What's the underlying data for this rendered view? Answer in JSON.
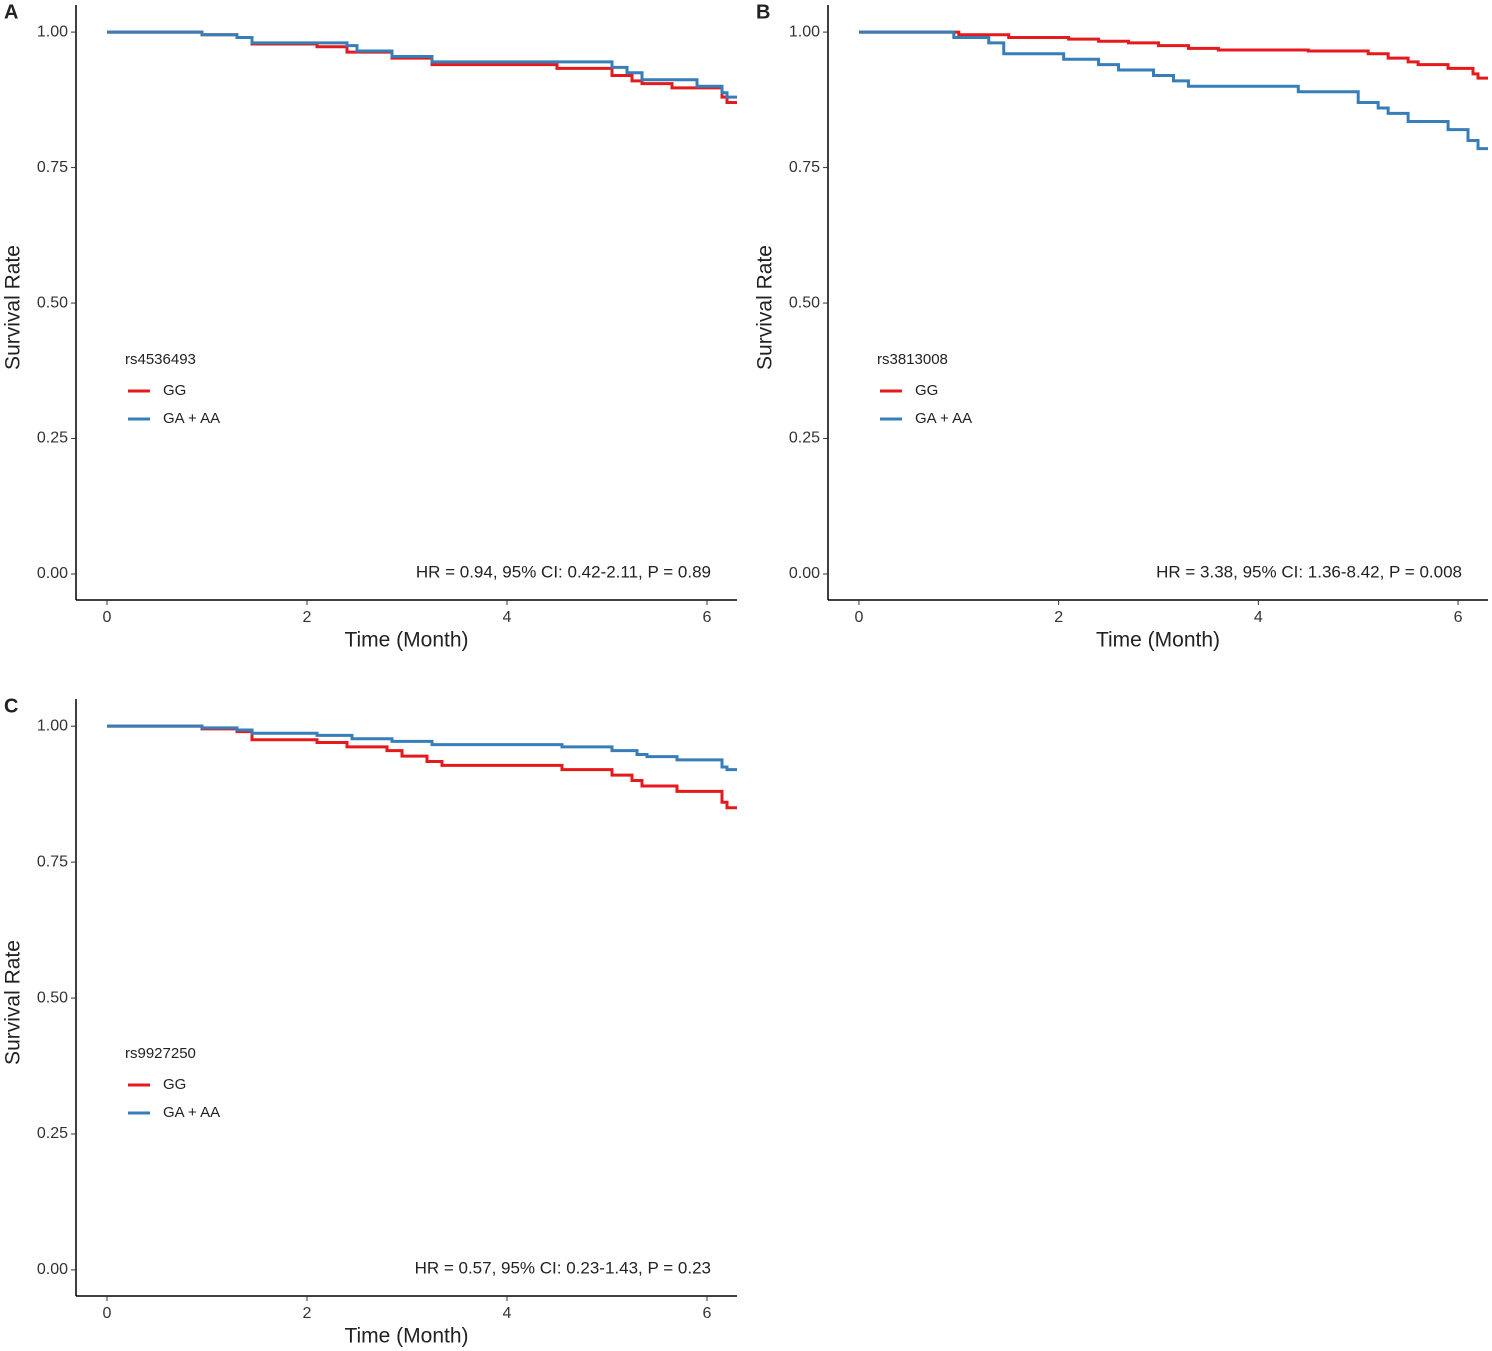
{
  "chart_data": [
    {
      "type": "step",
      "panel_label": "A",
      "x_label": "Time (Month)",
      "y_label": "Survival Rate",
      "legend_title": "rs4536493",
      "annotation": "HR = 0.94, 95% CI: 0.42-2.11, P =  0.89",
      "xlim": [
        -0.31,
        6.3
      ],
      "ylim": [
        -0.048,
        1.05
      ],
      "xticks": [
        0,
        2,
        4,
        6
      ],
      "yticks": [
        {
          "value": 0,
          "label": "0.00"
        },
        {
          "value": 0.25,
          "label": "0.25"
        },
        {
          "value": 0.5,
          "label": "0.50"
        },
        {
          "value": 0.75,
          "label": "0.75"
        },
        {
          "value": 1,
          "label": "1.00"
        }
      ],
      "series": [
        {
          "name": "GG",
          "color": "#e41a1c",
          "x": [
            0,
            0.95,
            1.3,
            1.45,
            2.1,
            2.4,
            2.85,
            3.25,
            4.5,
            5.05,
            5.25,
            5.35,
            5.65,
            6.15,
            6.2,
            6.3
          ],
          "values": [
            1,
            0.995,
            0.99,
            0.978,
            0.973,
            0.963,
            0.952,
            0.94,
            0.933,
            0.92,
            0.91,
            0.905,
            0.897,
            0.88,
            0.87,
            0.87
          ]
        },
        {
          "name": "GA + AA",
          "color": "#377eb8",
          "x": [
            0,
            0.95,
            1.3,
            1.45,
            2.4,
            2.5,
            2.85,
            3.25,
            5.05,
            5.2,
            5.35,
            5.9,
            6.15,
            6.2,
            6.3
          ],
          "values": [
            1,
            0.995,
            0.99,
            0.98,
            0.975,
            0.965,
            0.955,
            0.945,
            0.935,
            0.925,
            0.912,
            0.9,
            0.888,
            0.88,
            0.88
          ]
        }
      ]
    },
    {
      "type": "step",
      "panel_label": "B",
      "x_label": "Time (Month)",
      "y_label": "Survival Rate",
      "legend_title": "rs3813008",
      "annotation": "HR = 3.38, 95% CI: 1.36-8.42, P = 0.008",
      "xlim": [
        -0.31,
        6.3
      ],
      "ylim": [
        -0.048,
        1.05
      ],
      "xticks": [
        0,
        2,
        4,
        6
      ],
      "yticks": [
        {
          "value": 0,
          "label": "0.00"
        },
        {
          "value": 0.25,
          "label": "0.25"
        },
        {
          "value": 0.5,
          "label": "0.50"
        },
        {
          "value": 0.75,
          "label": "0.75"
        },
        {
          "value": 1,
          "label": "1.00"
        }
      ],
      "series": [
        {
          "name": "GG",
          "color": "#e41a1c",
          "x": [
            0,
            1.0,
            1.5,
            2.1,
            2.4,
            2.7,
            3.0,
            3.3,
            3.6,
            4.5,
            5.1,
            5.3,
            5.5,
            5.6,
            5.9,
            6.15,
            6.2,
            6.3
          ],
          "values": [
            1,
            0.995,
            0.99,
            0.987,
            0.983,
            0.98,
            0.975,
            0.97,
            0.967,
            0.965,
            0.96,
            0.952,
            0.945,
            0.94,
            0.933,
            0.923,
            0.915,
            0.915
          ]
        },
        {
          "name": "GA + AA",
          "color": "#377eb8",
          "x": [
            0,
            0.95,
            1.3,
            1.45,
            2.05,
            2.4,
            2.6,
            2.95,
            3.15,
            3.3,
            4.4,
            5.0,
            5.2,
            5.3,
            5.5,
            5.9,
            6.1,
            6.2,
            6.3
          ],
          "values": [
            1,
            0.99,
            0.98,
            0.96,
            0.95,
            0.94,
            0.93,
            0.92,
            0.91,
            0.9,
            0.89,
            0.87,
            0.86,
            0.85,
            0.835,
            0.82,
            0.8,
            0.785,
            0.785
          ]
        }
      ]
    },
    {
      "type": "step",
      "panel_label": "C",
      "x_label": "Time (Month)",
      "y_label": "Survival Rate",
      "legend_title": "rs9927250",
      "annotation": "HR = 0.57, 95% CI: 0.23-1.43, P = 0.23",
      "xlim": [
        -0.31,
        6.3
      ],
      "ylim": [
        -0.048,
        1.05
      ],
      "xticks": [
        0,
        2,
        4,
        6
      ],
      "yticks": [
        {
          "value": 0,
          "label": "0.00"
        },
        {
          "value": 0.25,
          "label": "0.25"
        },
        {
          "value": 0.5,
          "label": "0.50"
        },
        {
          "value": 0.75,
          "label": "0.75"
        },
        {
          "value": 1,
          "label": "1.00"
        }
      ],
      "series": [
        {
          "name": "GG",
          "color": "#e41a1c",
          "x": [
            0,
            0.95,
            1.3,
            1.45,
            2.1,
            2.4,
            2.8,
            2.95,
            3.2,
            3.35,
            4.55,
            5.05,
            5.25,
            5.35,
            5.7,
            6.15,
            6.2,
            6.3
          ],
          "values": [
            1,
            0.995,
            0.99,
            0.975,
            0.97,
            0.962,
            0.955,
            0.945,
            0.935,
            0.928,
            0.92,
            0.91,
            0.9,
            0.89,
            0.88,
            0.86,
            0.85,
            0.85
          ]
        },
        {
          "name": "GA + AA",
          "color": "#377eb8",
          "x": [
            0,
            0.95,
            1.3,
            1.45,
            2.1,
            2.45,
            2.85,
            3.25,
            4.55,
            5.05,
            5.3,
            5.4,
            5.7,
            6.15,
            6.2,
            6.3
          ],
          "values": [
            1,
            0.997,
            0.993,
            0.987,
            0.983,
            0.977,
            0.972,
            0.966,
            0.962,
            0.955,
            0.948,
            0.944,
            0.938,
            0.925,
            0.92,
            0.92
          ]
        }
      ]
    }
  ]
}
